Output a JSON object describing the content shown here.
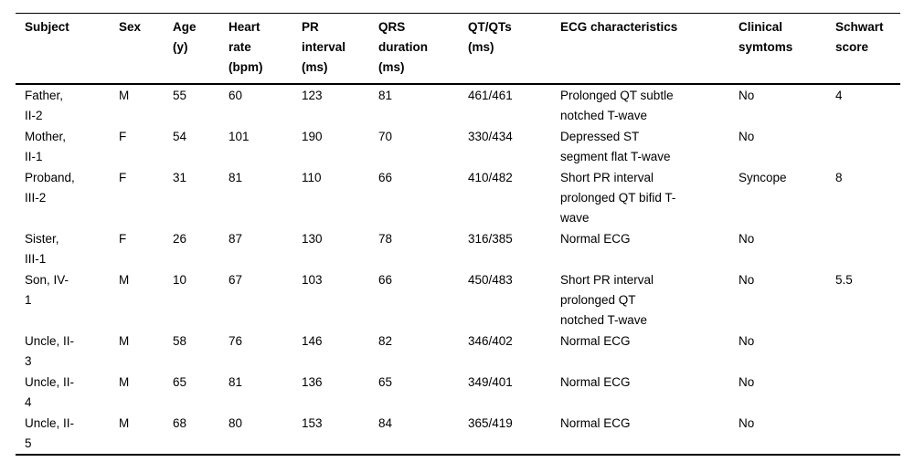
{
  "style": {
    "background": "#ffffff",
    "text_color": "#000000",
    "rule_color": "#000000"
  },
  "table": {
    "columns": [
      {
        "id": "subject",
        "label": "Subject"
      },
      {
        "id": "sex",
        "label": "Sex"
      },
      {
        "id": "age",
        "label": "Age\n(y)"
      },
      {
        "id": "heart_rate",
        "label": "Heart\nrate\n(bpm)"
      },
      {
        "id": "pr_interval",
        "label": "PR\ninterval\n(ms)"
      },
      {
        "id": "qrs_duration",
        "label": "QRS\nduration\n(ms)"
      },
      {
        "id": "qt_qts",
        "label": "QT/QTs\n(ms)"
      },
      {
        "id": "ecg",
        "label": "ECG characteristics"
      },
      {
        "id": "clinical",
        "label": "Clinical\nsymtoms"
      },
      {
        "id": "schwart",
        "label": "Schwart\nscore"
      }
    ],
    "rows": [
      {
        "subject": "Father,\nII-2",
        "sex": "M",
        "age": "55",
        "heart_rate": "60",
        "pr_interval": "123",
        "qrs_duration": "81",
        "qt_qts": "461/461",
        "ecg": "Prolonged QT subtle\nnotched T-wave",
        "clinical": "No",
        "schwart": "4"
      },
      {
        "subject": "Mother,\nII-1",
        "sex": "F",
        "age": "54",
        "heart_rate": "101",
        "pr_interval": "190",
        "qrs_duration": "70",
        "qt_qts": "330/434",
        "ecg": "Depressed ST\nsegment flat T-wave",
        "clinical": "No",
        "schwart": ""
      },
      {
        "subject": "Proband,\nIII-2",
        "sex": "F",
        "age": "31",
        "heart_rate": "81",
        "pr_interval": "110",
        "qrs_duration": "66",
        "qt_qts": "410/482",
        "ecg": "Short PR interval\nprolonged QT bifid T-\nwave",
        "clinical": "Syncope",
        "schwart": "8"
      },
      {
        "subject": "Sister,\nIII-1",
        "sex": "F",
        "age": "26",
        "heart_rate": "87",
        "pr_interval": "130",
        "qrs_duration": "78",
        "qt_qts": "316/385",
        "ecg": "Normal ECG",
        "clinical": "No",
        "schwart": ""
      },
      {
        "subject": "Son, IV-\n1",
        "sex": "M",
        "age": "10",
        "heart_rate": "67",
        "pr_interval": "103",
        "qrs_duration": "66",
        "qt_qts": "450/483",
        "ecg": "Short PR interval\nprolonged QT\nnotched T-wave",
        "clinical": "No",
        "schwart": "5.5"
      },
      {
        "subject": "Uncle, II-\n3",
        "sex": "M",
        "age": "58",
        "heart_rate": "76",
        "pr_interval": "146",
        "qrs_duration": "82",
        "qt_qts": "346/402",
        "ecg": "Normal ECG",
        "clinical": "No",
        "schwart": ""
      },
      {
        "subject": "Uncle, II-\n4",
        "sex": "M",
        "age": "65",
        "heart_rate": "81",
        "pr_interval": "136",
        "qrs_duration": "65",
        "qt_qts": "349/401",
        "ecg": "Normal ECG",
        "clinical": "No",
        "schwart": ""
      },
      {
        "subject": "Uncle, II-\n5",
        "sex": "M",
        "age": "68",
        "heart_rate": "80",
        "pr_interval": "153",
        "qrs_duration": "84",
        "qt_qts": "365/419",
        "ecg": "Normal ECG",
        "clinical": "No",
        "schwart": ""
      }
    ]
  }
}
